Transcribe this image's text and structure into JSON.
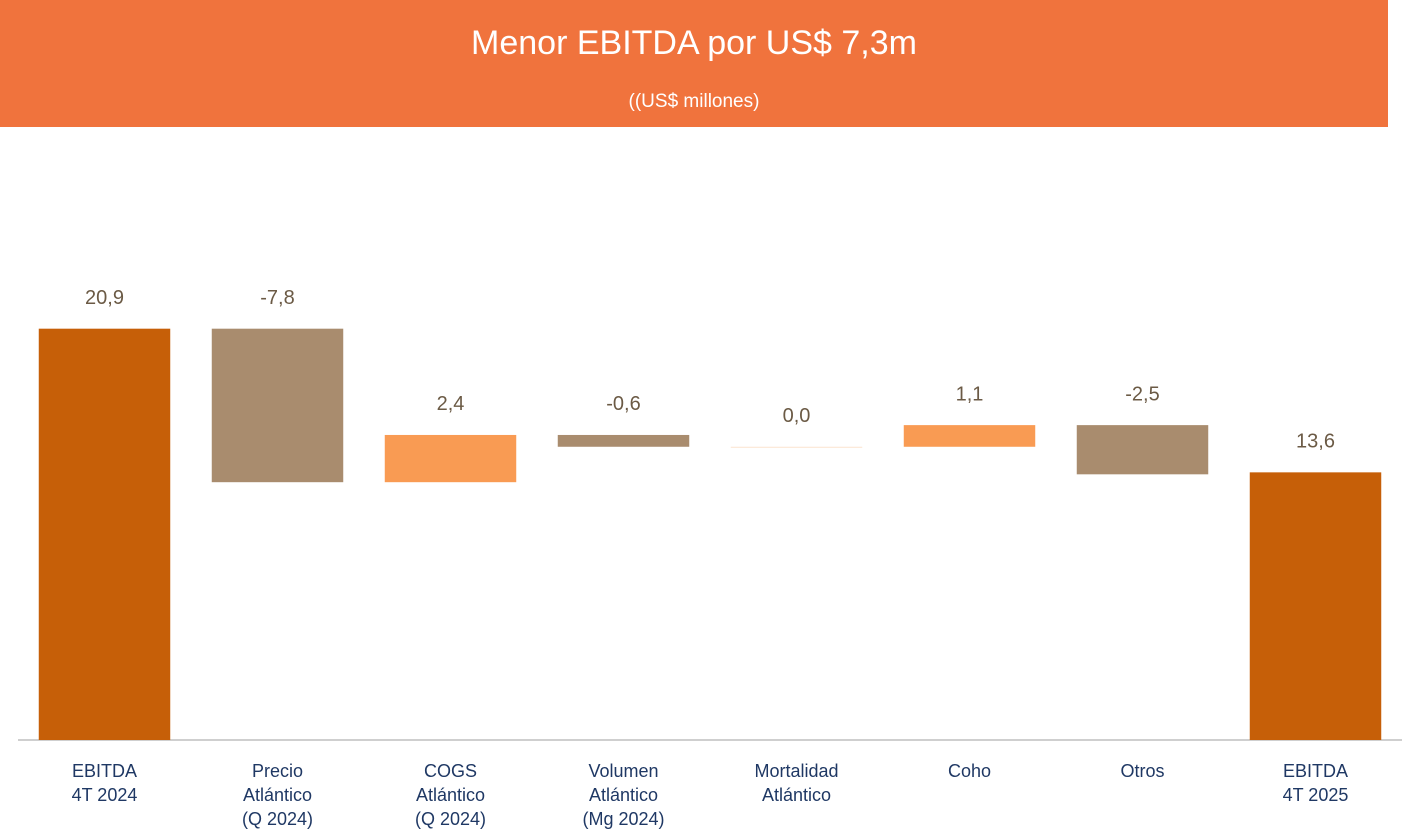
{
  "chart_data": {
    "type": "waterfall",
    "title": "Menor EBITDA por US$ 7,3m",
    "subtitle": "((US$ millones)",
    "categories": [
      [
        "EBITDA",
        "4T 2024"
      ],
      [
        "Precio",
        "Atlántico",
        "(Q 2024)"
      ],
      [
        "COGS",
        "Atlántico",
        "(Q 2024)"
      ],
      [
        "Volumen",
        "Atlántico",
        "(Mg 2024)"
      ],
      [
        "Mortalidad",
        "Atlántico"
      ],
      [
        "Coho"
      ],
      [
        "Otros"
      ],
      [
        "EBITDA",
        "4T 2025"
      ]
    ],
    "values": [
      20.9,
      -7.8,
      2.4,
      -0.6,
      0.0,
      1.1,
      -2.5,
      13.6
    ],
    "value_labels": [
      "20,9",
      "-7,8",
      "2,4",
      "-0,6",
      "0,0",
      "1,1",
      "-2,5",
      "13,6"
    ],
    "measure": [
      "total",
      "relative",
      "relative",
      "relative",
      "relative",
      "relative",
      "relative",
      "total"
    ],
    "colors": {
      "total": "#c65f08",
      "increase": "#f99b53",
      "decrease": "#a98c6e"
    },
    "ylim": [
      0,
      25
    ]
  }
}
